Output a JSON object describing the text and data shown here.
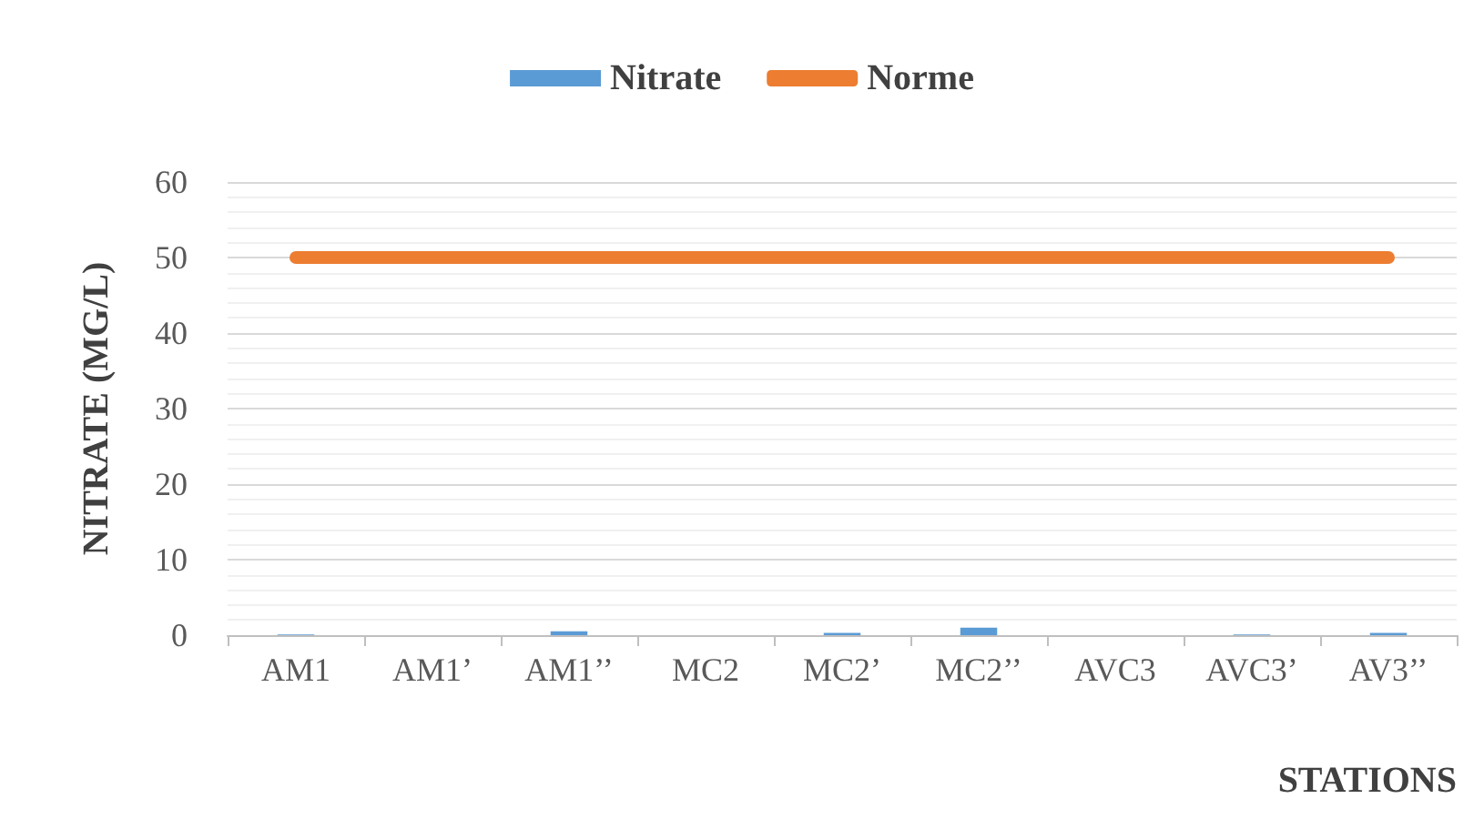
{
  "chart_data": {
    "type": "bar",
    "xlabel": "STATIONS",
    "ylabel": "NITRATE (MG/L)",
    "categories": [
      "AM1",
      "AM1’",
      "AM1’’",
      "MC2",
      "MC2’",
      "MC2’’",
      "AVC3",
      "AVC3’",
      "AV3’’"
    ],
    "series": [
      {
        "name": "Nitrate",
        "color": "#5b9bd5",
        "values": [
          0.1,
          0,
          0.5,
          0,
          0.3,
          1,
          0,
          0.1,
          0.3
        ]
      },
      {
        "name": "Norme",
        "type": "line",
        "color": "#ed7d31",
        "values": [
          50,
          50,
          50,
          50,
          50,
          50,
          50,
          50,
          50
        ]
      }
    ],
    "ylim": [
      0,
      60
    ],
    "yticks": [
      0,
      10,
      20,
      30,
      40,
      50,
      60
    ],
    "grid": "y",
    "legend": "top",
    "marker": "none"
  }
}
